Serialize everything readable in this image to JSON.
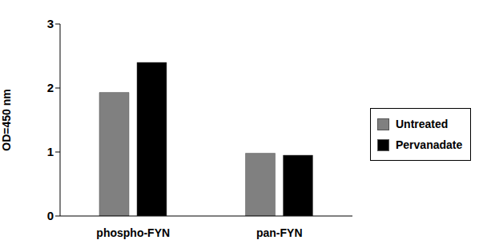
{
  "chart_data": {
    "type": "bar",
    "y_label": "OD=450 nm",
    "categories": [
      "phospho-FYN",
      "pan-FYN"
    ],
    "series": [
      {
        "name": "Untreated",
        "color": "#808080",
        "values": [
          1.93,
          0.98
        ]
      },
      {
        "name": "Pervanadate",
        "color": "#000000",
        "values": [
          2.4,
          0.95
        ]
      }
    ],
    "ylim": [
      0,
      3
    ],
    "yticks": [
      0,
      1,
      2,
      3
    ],
    "grid": false,
    "legend": "right"
  }
}
